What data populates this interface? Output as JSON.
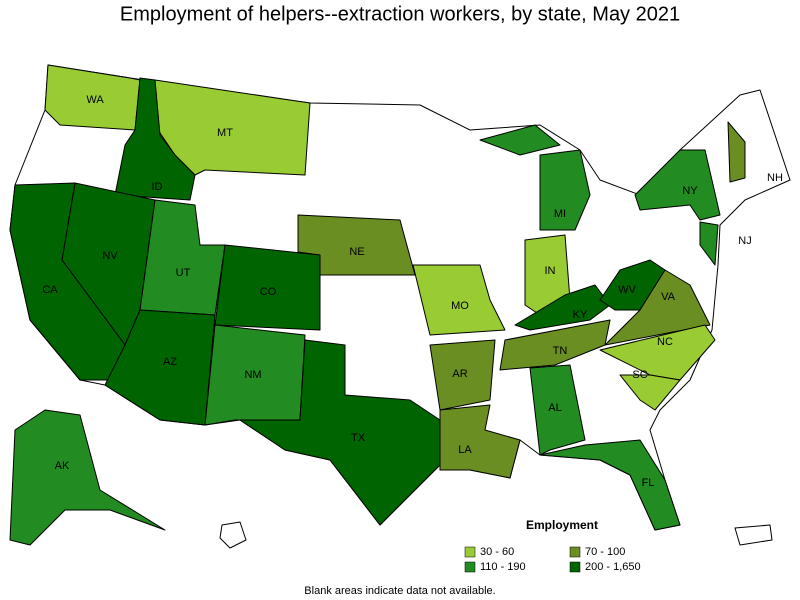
{
  "header": {
    "title": "Employment of helpers--extraction workers, by state, May 2021"
  },
  "states": [
    {
      "label": "WA",
      "color": "#99cc33"
    },
    {
      "label": "MT",
      "color": "#99cc33"
    },
    {
      "label": "ID",
      "color": "#006400"
    },
    {
      "label": "NV",
      "color": "#006400"
    },
    {
      "label": "CA",
      "color": "#006400"
    },
    {
      "label": "UT",
      "color": "#228b22"
    },
    {
      "label": "AZ",
      "color": "#006400"
    },
    {
      "label": "CO",
      "color": "#006400"
    },
    {
      "label": "NM",
      "color": "#228b22"
    },
    {
      "label": "TX",
      "color": "#006400"
    },
    {
      "label": "NE",
      "color": "#6b8e23"
    },
    {
      "label": "MO",
      "color": "#99cc33"
    },
    {
      "label": "AR",
      "color": "#6b8e23"
    },
    {
      "label": "LA",
      "color": "#6b8e23"
    },
    {
      "label": "MI",
      "color": "#228b22"
    },
    {
      "label": "IN",
      "color": "#99cc33"
    },
    {
      "label": "KY",
      "color": "#006400"
    },
    {
      "label": "TN",
      "color": "#6b8e23"
    },
    {
      "label": "AL",
      "color": "#228b22"
    },
    {
      "label": "FL",
      "color": "#228b22"
    },
    {
      "label": "WV",
      "color": "#006400"
    },
    {
      "label": "VA",
      "color": "#6b8e23"
    },
    {
      "label": "NC",
      "color": "#99cc33"
    },
    {
      "label": "SC",
      "color": "#99cc33"
    },
    {
      "label": "NY",
      "color": "#228b22"
    },
    {
      "label": "NJ",
      "color": "#228b22"
    },
    {
      "label": "NH",
      "color": "#6b8e23"
    },
    {
      "label": "AK",
      "color": "#228b22"
    }
  ],
  "legend": {
    "title": "Employment",
    "items": [
      {
        "label": "30 - 60",
        "color": "#99cc33"
      },
      {
        "label": "70 - 100",
        "color": "#6b8e23"
      },
      {
        "label": "110 - 190",
        "color": "#228b22"
      },
      {
        "label": "200 - 1,650",
        "color": "#006400"
      }
    ]
  },
  "footnote": "Blank areas indicate data not available."
}
